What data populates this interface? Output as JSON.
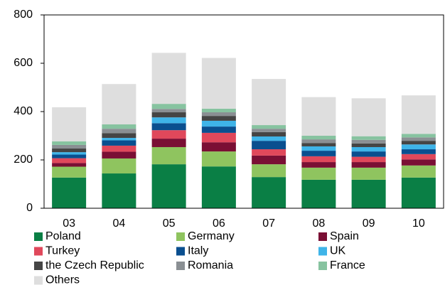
{
  "chart_data": {
    "type": "stacked_bar",
    "categories": [
      "03",
      "04",
      "05",
      "06",
      "07",
      "08",
      "09",
      "10"
    ],
    "series": [
      {
        "name": "Poland",
        "color": "#0a7f45",
        "values": [
          127,
          144,
          182,
          173,
          129,
          118,
          118,
          127
        ]
      },
      {
        "name": "Germany",
        "color": "#8fc45f",
        "values": [
          45,
          62,
          71,
          62,
          53,
          50,
          50,
          50
        ]
      },
      {
        "name": "Spain",
        "color": "#7a0f34",
        "values": [
          15,
          28,
          35,
          38,
          36,
          23,
          23,
          25
        ]
      },
      {
        "name": "Turkey",
        "color": "#e0485b",
        "values": [
          20,
          25,
          35,
          39,
          26,
          24,
          22,
          22
        ]
      },
      {
        "name": "Italy",
        "color": "#0a4f8f",
        "values": [
          15,
          22,
          29,
          26,
          35,
          23,
          22,
          20
        ]
      },
      {
        "name": "UK",
        "color": "#3fb4e8",
        "values": [
          10,
          10,
          24,
          24,
          18,
          18,
          18,
          20
        ]
      },
      {
        "name": "the Czech Republic",
        "color": "#454545",
        "values": [
          15,
          20,
          21,
          20,
          18,
          14,
          15,
          15
        ]
      },
      {
        "name": "Romania",
        "color": "#8a8f93",
        "values": [
          15,
          18,
          14,
          15,
          14,
          15,
          15,
          14
        ]
      },
      {
        "name": "France",
        "color": "#87c3a0",
        "values": [
          15,
          18,
          21,
          15,
          15,
          15,
          15,
          15
        ]
      },
      {
        "name": "Others",
        "color": "#dedede",
        "values": [
          141,
          167,
          211,
          210,
          191,
          160,
          157,
          159
        ]
      }
    ],
    "ylim": [
      0,
      800
    ],
    "yticks": [
      0,
      200,
      400,
      600,
      800
    ]
  }
}
